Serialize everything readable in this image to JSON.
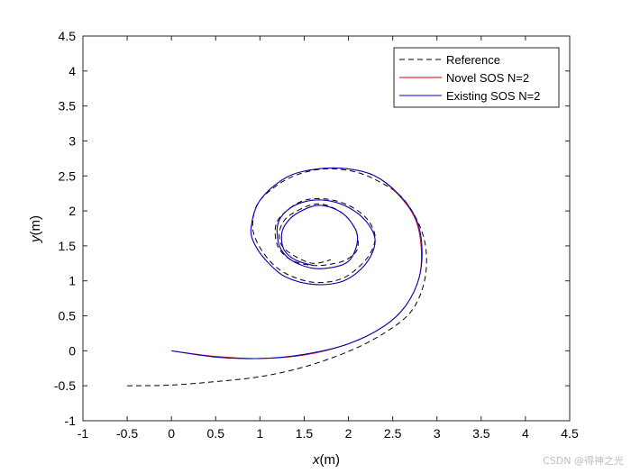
{
  "chart_data": {
    "type": "line",
    "title": "",
    "xlabel_var": "x",
    "xlabel_unit": "(m)",
    "ylabel_var": "y",
    "ylabel_unit": "(m)",
    "xlim": [
      -1,
      4.5
    ],
    "ylim": [
      -1,
      4.5
    ],
    "xticks": [
      -1,
      -0.5,
      0,
      0.5,
      1,
      1.5,
      2,
      2.5,
      3,
      3.5,
      4,
      4.5
    ],
    "yticks": [
      -1,
      -0.5,
      0,
      0.5,
      1,
      1.5,
      2,
      2.5,
      3,
      3.5,
      4,
      4.5
    ],
    "xtick_labels": [
      "-1",
      "-0.5",
      "0",
      "0.5",
      "1",
      "1.5",
      "2",
      "2.5",
      "3",
      "3.5",
      "4",
      "4.5"
    ],
    "ytick_labels": [
      "-1",
      "-0.5",
      "0",
      "0.5",
      "1",
      "1.5",
      "2",
      "2.5",
      "3",
      "3.5",
      "4",
      "4.5"
    ],
    "grid": false,
    "legend_position": "top-right",
    "series": [
      {
        "name": "Reference",
        "color": "#000000",
        "style": "dashed",
        "x": [
          -0.5,
          0.0,
          0.5,
          1.0,
          1.5,
          2.0,
          2.4,
          2.7,
          2.85,
          2.88,
          2.8,
          2.6,
          2.3,
          2.0,
          1.65,
          1.3,
          1.0,
          0.92,
          0.95,
          1.1,
          1.3,
          1.6,
          1.9,
          2.1,
          2.25,
          2.3,
          2.2,
          2.0,
          1.75,
          1.5,
          1.3,
          1.18,
          1.2,
          1.35,
          1.6,
          1.85,
          2.0,
          2.1,
          2.1,
          2.05,
          1.95,
          1.8,
          1.65,
          1.5,
          1.3,
          1.22,
          1.25,
          1.4,
          1.6,
          1.8
        ],
        "y": [
          -0.5,
          -0.49,
          -0.44,
          -0.37,
          -0.23,
          -0.01,
          0.25,
          0.55,
          0.95,
          1.4,
          1.8,
          2.2,
          2.45,
          2.58,
          2.59,
          2.45,
          2.15,
          1.85,
          1.6,
          1.3,
          1.1,
          0.98,
          1.02,
          1.18,
          1.4,
          1.65,
          1.9,
          2.08,
          2.17,
          2.15,
          2.0,
          1.8,
          1.5,
          1.3,
          1.22,
          1.25,
          1.32,
          1.45,
          1.65,
          1.8,
          1.95,
          2.06,
          2.1,
          2.05,
          1.9,
          1.7,
          1.5,
          1.35,
          1.25,
          1.3
        ]
      },
      {
        "name": "Novel SOS N=2",
        "color": "#cc0000",
        "style": "solid",
        "x": [
          0.0,
          0.5,
          1.0,
          1.5,
          2.0,
          2.4,
          2.65,
          2.8,
          2.82,
          2.75,
          2.55,
          2.3,
          2.0,
          1.65,
          1.3,
          1.0,
          0.9,
          0.95,
          1.1,
          1.3,
          1.6,
          1.9,
          2.1,
          2.25,
          2.3,
          2.2,
          2.0,
          1.75,
          1.5,
          1.3,
          1.2,
          1.22,
          1.35,
          1.6,
          1.85,
          2.0,
          2.08,
          2.1,
          2.05,
          1.95,
          1.8,
          1.65,
          1.5,
          1.35,
          1.25,
          1.27,
          1.4,
          1.6
        ],
        "y": [
          0.0,
          -0.08,
          -0.11,
          -0.06,
          0.1,
          0.35,
          0.65,
          1.05,
          1.5,
          1.9,
          2.25,
          2.5,
          2.6,
          2.6,
          2.48,
          2.15,
          1.75,
          1.5,
          1.25,
          1.05,
          0.95,
          0.98,
          1.12,
          1.35,
          1.6,
          1.85,
          2.05,
          2.15,
          2.13,
          2.0,
          1.8,
          1.5,
          1.3,
          1.18,
          1.2,
          1.28,
          1.45,
          1.65,
          1.8,
          1.95,
          2.05,
          2.08,
          2.02,
          1.9,
          1.7,
          1.45,
          1.3,
          1.22
        ]
      },
      {
        "name": "Existing SOS N=2",
        "color": "#0000cc",
        "style": "solid",
        "x": [
          0.0,
          0.5,
          1.0,
          1.5,
          2.0,
          2.4,
          2.65,
          2.8,
          2.83,
          2.76,
          2.56,
          2.3,
          2.0,
          1.65,
          1.3,
          1.0,
          0.9,
          0.95,
          1.1,
          1.3,
          1.6,
          1.9,
          2.1,
          2.25,
          2.3,
          2.2,
          2.0,
          1.75,
          1.5,
          1.3,
          1.2,
          1.22,
          1.35,
          1.6,
          1.85,
          2.0,
          2.08,
          2.1,
          2.05,
          1.95,
          1.8,
          1.65,
          1.5,
          1.35,
          1.25,
          1.27,
          1.4,
          1.6
        ],
        "y": [
          0.0,
          -0.09,
          -0.11,
          -0.05,
          0.1,
          0.35,
          0.65,
          1.05,
          1.5,
          1.9,
          2.25,
          2.5,
          2.6,
          2.6,
          2.48,
          2.15,
          1.75,
          1.5,
          1.25,
          1.05,
          0.95,
          0.98,
          1.12,
          1.35,
          1.6,
          1.85,
          2.05,
          2.15,
          2.13,
          2.0,
          1.8,
          1.5,
          1.3,
          1.18,
          1.2,
          1.28,
          1.45,
          1.65,
          1.8,
          1.95,
          2.05,
          2.08,
          2.02,
          1.9,
          1.7,
          1.45,
          1.3,
          1.22
        ]
      }
    ]
  },
  "watermark": "CSDN @得神之光"
}
